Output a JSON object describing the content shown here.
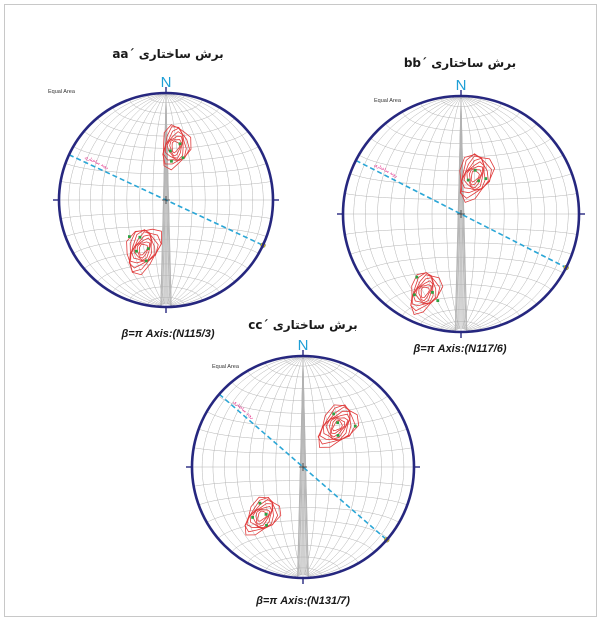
{
  "figure": {
    "north_label": "N",
    "equal_area_label": "Equal Area",
    "trend_label": "روند ساختاری",
    "colors": {
      "primitive_circle": "#26277f",
      "net_lines": "#b3b3b3",
      "contour": "#e03a3a",
      "points": "#2ea043",
      "pi_girdle": "#2aa6d6",
      "north": "#1e9fd6",
      "trend_text": "#e0197d",
      "endpoint": "#e8d21a"
    },
    "nets": [
      {
        "id": "aa",
        "title": "برش ساختاری ´aa",
        "beta_label": "β=π Axis:(N115/3)",
        "beta_axis": {
          "trend": 115,
          "plunge": 3
        },
        "pole_clusters": [
          {
            "trend": 10,
            "plunge": 48,
            "strength": 7
          },
          {
            "trend": 205,
            "plunge": 48,
            "strength": 8
          }
        ],
        "poles": [
          {
            "trend": 5,
            "plunge": 52
          },
          {
            "trend": 14,
            "plunge": 45
          },
          {
            "trend": 22,
            "plunge": 55
          },
          {
            "trend": 8,
            "plunge": 60
          },
          {
            "trend": 200,
            "plunge": 50
          },
          {
            "trend": 210,
            "plunge": 44
          },
          {
            "trend": 215,
            "plunge": 55
          },
          {
            "trend": 198,
            "plunge": 40
          },
          {
            "trend": 225,
            "plunge": 50
          }
        ]
      },
      {
        "id": "bb",
        "title": "برش ساختاری ´bb",
        "beta_label": "β=π Axis:(N117/6)",
        "beta_axis": {
          "trend": 117,
          "plunge": 6
        },
        "pole_clusters": [
          {
            "trend": 20,
            "plunge": 62,
            "strength": 8
          },
          {
            "trend": 205,
            "plunge": 28,
            "strength": 7
          }
        ],
        "poles": [
          {
            "trend": 18,
            "plunge": 58
          },
          {
            "trend": 28,
            "plunge": 64
          },
          {
            "trend": 12,
            "plunge": 66
          },
          {
            "trend": 35,
            "plunge": 60
          },
          {
            "trend": 200,
            "plunge": 30
          },
          {
            "trend": 210,
            "plunge": 22
          },
          {
            "trend": 215,
            "plunge": 35
          },
          {
            "trend": 195,
            "plunge": 25
          }
        ]
      },
      {
        "id": "cc",
        "title": "برش ساختاری ´cc",
        "beta_label": "β=π Axis:(N131/7)",
        "beta_axis": {
          "trend": 131,
          "plunge": 7
        },
        "pole_clusters": [
          {
            "trend": 40,
            "plunge": 50,
            "strength": 8
          },
          {
            "trend": 220,
            "plunge": 42,
            "strength": 7
          }
        ],
        "poles": [
          {
            "trend": 38,
            "plunge": 48
          },
          {
            "trend": 48,
            "plunge": 55
          },
          {
            "trend": 30,
            "plunge": 44
          },
          {
            "trend": 52,
            "plunge": 40
          },
          {
            "trend": 218,
            "plunge": 45
          },
          {
            "trend": 225,
            "plunge": 36
          },
          {
            "trend": 230,
            "plunge": 48
          },
          {
            "trend": 212,
            "plunge": 38
          }
        ]
      }
    ]
  }
}
